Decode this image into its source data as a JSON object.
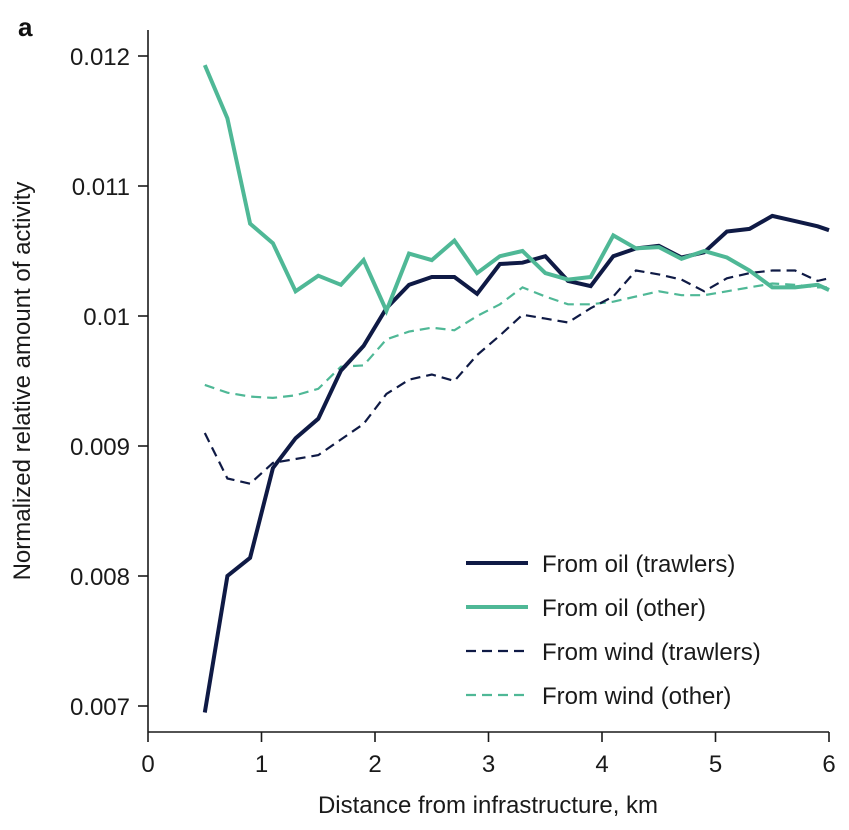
{
  "panel_label": "a",
  "chart_data": {
    "type": "line",
    "xlabel": "Distance from infrastructure, km",
    "ylabel": "Normalized relative amount of activity",
    "xlim": [
      0,
      6
    ],
    "ylim": [
      0.0068,
      0.0122
    ],
    "x_ticks": [
      0,
      1,
      2,
      3,
      4,
      5,
      6
    ],
    "x_tick_labels": [
      "0",
      "1",
      "2",
      "3",
      "4",
      "5",
      "6"
    ],
    "y_ticks": [
      0.007,
      0.008,
      0.009,
      0.01,
      0.011,
      0.012
    ],
    "y_tick_labels": [
      "0.007",
      "0.008",
      "0.009",
      "0.01",
      "0.011",
      "0.012"
    ],
    "grid": false,
    "legend_position": "bottom-right",
    "x": [
      0.5,
      0.7,
      0.9,
      1.1,
      1.3,
      1.5,
      1.7,
      1.9,
      2.1,
      2.3,
      2.5,
      2.7,
      2.9,
      3.1,
      3.3,
      3.5,
      3.7,
      3.9,
      4.1,
      4.3,
      4.5,
      4.7,
      4.9,
      5.1,
      5.3,
      5.5,
      5.7,
      5.9,
      6.0
    ],
    "series": [
      {
        "name": "From oil (trawlers)",
        "color": "#0f1a45",
        "style": "solid",
        "values": [
          0.00695,
          0.008,
          0.00814,
          0.00883,
          0.00906,
          0.00921,
          0.00958,
          0.00977,
          0.01006,
          0.01024,
          0.0103,
          0.0103,
          0.01017,
          0.0104,
          0.01041,
          0.01046,
          0.01027,
          0.01023,
          0.01046,
          0.01052,
          0.01054,
          0.01045,
          0.01049,
          0.01065,
          0.01067,
          0.01077,
          0.01073,
          0.01069,
          0.01066
        ]
      },
      {
        "name": "From oil (other)",
        "color": "#4fb896",
        "style": "solid",
        "values": [
          0.01193,
          0.01152,
          0.01071,
          0.01056,
          0.01019,
          0.01031,
          0.01024,
          0.01043,
          0.01004,
          0.01048,
          0.01043,
          0.01058,
          0.01033,
          0.01046,
          0.0105,
          0.01033,
          0.01028,
          0.0103,
          0.01062,
          0.01052,
          0.01053,
          0.01044,
          0.0105,
          0.01045,
          0.01035,
          0.01022,
          0.01022,
          0.01024,
          0.0102
        ]
      },
      {
        "name": "From wind (trawlers)",
        "color": "#0f1a45",
        "style": "dashed",
        "values": [
          0.0091,
          0.00875,
          0.00871,
          0.00887,
          0.0089,
          0.00893,
          0.00905,
          0.00917,
          0.0094,
          0.00951,
          0.00955,
          0.0095,
          0.0097,
          0.00985,
          0.01001,
          0.00998,
          0.00995,
          0.01006,
          0.01015,
          0.01035,
          0.01032,
          0.01028,
          0.01019,
          0.01029,
          0.01033,
          0.01035,
          0.01035,
          0.01027,
          0.01029
        ]
      },
      {
        "name": "From wind (other)",
        "color": "#4fb896",
        "style": "dashed",
        "values": [
          0.00947,
          0.00941,
          0.00938,
          0.00937,
          0.00939,
          0.00944,
          0.00961,
          0.00962,
          0.00982,
          0.00988,
          0.00991,
          0.00989,
          0.01,
          0.01009,
          0.01022,
          0.01015,
          0.01009,
          0.01009,
          0.01011,
          0.01015,
          0.01019,
          0.01016,
          0.01016,
          0.01019,
          0.01022,
          0.01025,
          0.01024,
          0.01022,
          0.01022
        ]
      }
    ]
  }
}
